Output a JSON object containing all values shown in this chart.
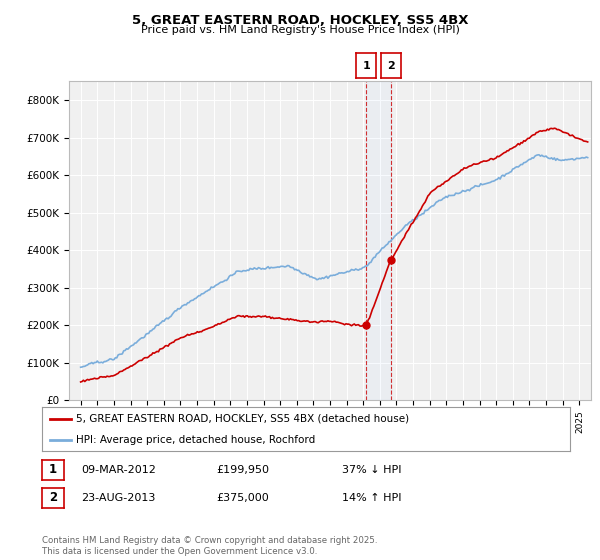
{
  "title": "5, GREAT EASTERN ROAD, HOCKLEY, SS5 4BX",
  "subtitle": "Price paid vs. HM Land Registry's House Price Index (HPI)",
  "legend_line1": "5, GREAT EASTERN ROAD, HOCKLEY, SS5 4BX (detached house)",
  "legend_line2": "HPI: Average price, detached house, Rochford",
  "transaction1_date": "09-MAR-2012",
  "transaction1_price": "£199,950",
  "transaction1_hpi": "37% ↓ HPI",
  "transaction2_date": "23-AUG-2013",
  "transaction2_price": "£375,000",
  "transaction2_hpi": "14% ↑ HPI",
  "footnote": "Contains HM Land Registry data © Crown copyright and database right 2025.\nThis data is licensed under the Open Government Licence v3.0.",
  "ylim": [
    0,
    850000
  ],
  "yticks": [
    0,
    100000,
    200000,
    300000,
    400000,
    500000,
    600000,
    700000,
    800000
  ],
  "ytick_labels": [
    "£0",
    "£100K",
    "£200K",
    "£300K",
    "£400K",
    "£500K",
    "£600K",
    "£700K",
    "£800K"
  ],
  "hpi_color": "#7aaddb",
  "price_color": "#cc0000",
  "bg_color": "#f0f0f0",
  "grid_color": "#ffffff",
  "transaction1_x": 2012.18,
  "transaction2_x": 2013.65,
  "xlim_left": 1994.3,
  "xlim_right": 2025.7
}
